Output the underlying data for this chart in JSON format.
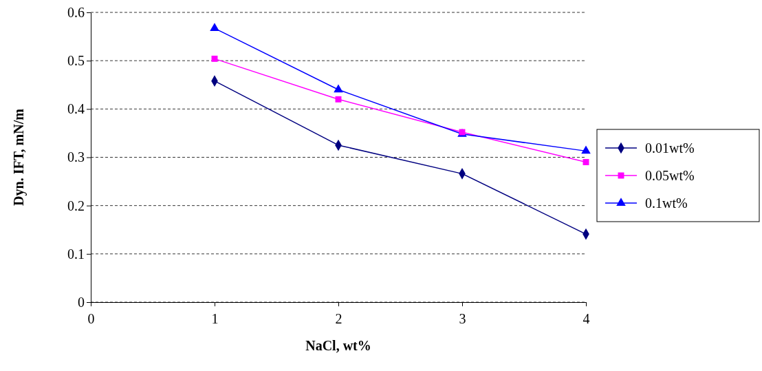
{
  "chart_data": {
    "type": "line",
    "xlabel": "NaCl, wt%",
    "ylabel": "Dyn. IFT, mN/m",
    "x": [
      1,
      2,
      3,
      4
    ],
    "xlim": [
      0,
      4
    ],
    "xticks": [
      0,
      1,
      2,
      3,
      4
    ],
    "ylim": [
      0,
      0.6
    ],
    "yticks": [
      0,
      0.1,
      0.2,
      0.3,
      0.4,
      0.5,
      0.6
    ],
    "grid": "y",
    "legend": "right",
    "series": [
      {
        "name": "0.01wt%",
        "color": "#000080",
        "marker": "diamond",
        "values": [
          0.458,
          0.325,
          0.266,
          0.141
        ]
      },
      {
        "name": "0.05wt%",
        "color": "#ff00ff",
        "marker": "square",
        "values": [
          0.504,
          0.42,
          0.352,
          0.29
        ]
      },
      {
        "name": "0.1wt%",
        "color": "#0000ff",
        "marker": "triangle",
        "values": [
          0.567,
          0.44,
          0.348,
          0.313
        ]
      }
    ]
  }
}
